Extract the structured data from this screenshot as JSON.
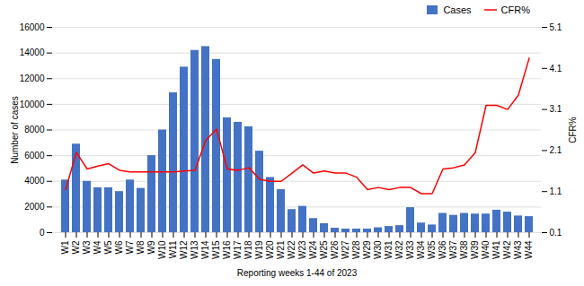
{
  "chart_data": {
    "type": "bar",
    "xlabel": "Reporting weeks 1-44 of 2023",
    "ylabel": "Number of cases",
    "y2label": "CFR%",
    "categories": [
      "W1",
      "W2",
      "W3",
      "W4",
      "W5",
      "W6",
      "W7",
      "W8",
      "W9",
      "W10",
      "W11",
      "W12",
      "W13",
      "W14",
      "W15",
      "W16",
      "W17",
      "W18",
      "W19",
      "W20",
      "W21",
      "W22",
      "W23",
      "W24",
      "W25",
      "W26",
      "W27",
      "W28",
      "W29",
      "W30",
      "W31",
      "W32",
      "W33",
      "W34",
      "W35",
      "W36",
      "W37",
      "W38",
      "W39",
      "W40",
      "W41",
      "W42",
      "W43",
      "W44"
    ],
    "series": [
      {
        "name": "Cases",
        "type": "bar",
        "color": "#4472C4",
        "values": [
          4100,
          6900,
          4000,
          3500,
          3500,
          3200,
          4100,
          3450,
          6000,
          8000,
          10900,
          12900,
          14200,
          14500,
          13500,
          8950,
          8600,
          8250,
          6350,
          4300,
          3350,
          1800,
          2050,
          1100,
          700,
          350,
          280,
          280,
          280,
          380,
          480,
          550,
          1950,
          750,
          600,
          1500,
          1350,
          1500,
          1450,
          1450,
          1750,
          1600,
          1300,
          1250
        ]
      },
      {
        "name": "CFR%",
        "type": "line",
        "axis": "y2",
        "color": "red",
        "values": [
          1.15,
          2.05,
          1.65,
          1.72,
          1.78,
          1.62,
          1.58,
          1.58,
          1.58,
          1.58,
          1.58,
          1.6,
          1.62,
          2.35,
          2.62,
          1.65,
          1.62,
          1.68,
          1.4,
          1.35,
          1.35,
          1.55,
          1.75,
          1.55,
          1.6,
          1.55,
          1.55,
          1.45,
          1.15,
          1.2,
          1.15,
          1.2,
          1.2,
          1.05,
          1.05,
          1.65,
          1.68,
          1.75,
          2.05,
          3.2,
          3.2,
          3.1,
          3.45,
          4.35
        ]
      }
    ],
    "ylim": [
      0,
      16000
    ],
    "yticks": [
      0,
      2000,
      4000,
      6000,
      8000,
      10000,
      12000,
      14000,
      16000
    ],
    "y2lim": [
      0.1,
      5.1
    ],
    "y2ticks": [
      0.1,
      1.1,
      2.1,
      3.1,
      4.1,
      5.1
    ],
    "grid": true,
    "legend": "upper right"
  }
}
